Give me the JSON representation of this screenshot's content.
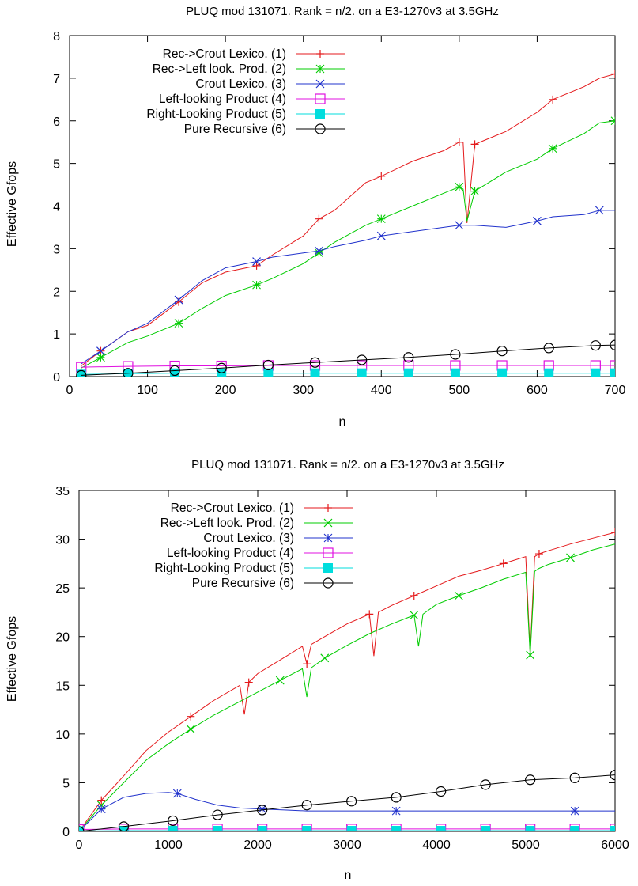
{
  "chart_data": [
    {
      "type": "line",
      "title": "PLUQ mod 131071. Rank = n/2. on a E3-1270v3 at 3.5GHz",
      "xlabel": "n",
      "ylabel": "Effective Gfops",
      "xlim": [
        0,
        700
      ],
      "ylim": [
        0,
        8
      ],
      "xticks": [
        0,
        100,
        200,
        300,
        400,
        500,
        600,
        700
      ],
      "yticks": [
        0,
        1,
        2,
        3,
        4,
        5,
        6,
        7,
        8
      ],
      "grid": false,
      "legend_position": "top-left",
      "series": [
        {
          "name": "Rec->Crout Lexico. (1)",
          "color": "#e41a1c",
          "marker": "plus",
          "x": [
            15,
            40,
            75,
            100,
            140,
            170,
            200,
            240,
            260,
            300,
            320,
            340,
            380,
            400,
            440,
            480,
            500,
            505,
            510,
            520,
            560,
            600,
            620,
            660,
            680,
            700
          ],
          "y": [
            0.25,
            0.6,
            1.05,
            1.2,
            1.75,
            2.2,
            2.45,
            2.6,
            2.85,
            3.3,
            3.7,
            3.9,
            4.55,
            4.7,
            5.05,
            5.3,
            5.5,
            5.5,
            3.6,
            5.45,
            5.75,
            6.2,
            6.5,
            6.8,
            7.0,
            7.1
          ]
        },
        {
          "name": "Rec->Left look. Prod. (2)",
          "color": "#00cc00",
          "marker": "star",
          "x": [
            15,
            40,
            75,
            100,
            140,
            170,
            200,
            240,
            260,
            300,
            320,
            340,
            380,
            400,
            440,
            480,
            500,
            505,
            510,
            520,
            560,
            600,
            620,
            660,
            680,
            700
          ],
          "y": [
            0.2,
            0.45,
            0.8,
            0.95,
            1.25,
            1.6,
            1.9,
            2.15,
            2.3,
            2.65,
            2.9,
            3.15,
            3.55,
            3.7,
            4.0,
            4.3,
            4.45,
            4.4,
            3.65,
            4.35,
            4.8,
            5.1,
            5.35,
            5.7,
            5.95,
            6.0
          ]
        },
        {
          "name": "Crout Lexico. (3)",
          "color": "#2233cc",
          "marker": "cross",
          "x": [
            15,
            40,
            75,
            100,
            140,
            170,
            200,
            240,
            260,
            300,
            320,
            340,
            380,
            400,
            440,
            480,
            500,
            520,
            560,
            600,
            620,
            660,
            680,
            700
          ],
          "y": [
            0.3,
            0.6,
            1.05,
            1.25,
            1.8,
            2.25,
            2.55,
            2.7,
            2.8,
            2.9,
            2.95,
            3.05,
            3.2,
            3.3,
            3.4,
            3.5,
            3.55,
            3.55,
            3.5,
            3.65,
            3.75,
            3.8,
            3.9,
            3.9
          ]
        },
        {
          "name": "Left-looking Product (4)",
          "color": "#e010e0",
          "marker": "square-open",
          "x": [
            15,
            75,
            135,
            195,
            255,
            315,
            375,
            435,
            495,
            555,
            615,
            675,
            700
          ],
          "y": [
            0.22,
            0.24,
            0.25,
            0.25,
            0.26,
            0.26,
            0.26,
            0.26,
            0.26,
            0.26,
            0.26,
            0.26,
            0.26
          ]
        },
        {
          "name": "Right-Looking Product (5)",
          "color": "#00dddd",
          "marker": "square-filled",
          "x": [
            15,
            75,
            135,
            195,
            255,
            315,
            375,
            435,
            495,
            555,
            615,
            675,
            700
          ],
          "y": [
            0.05,
            0.07,
            0.08,
            0.08,
            0.08,
            0.08,
            0.08,
            0.08,
            0.08,
            0.08,
            0.08,
            0.08,
            0.08
          ]
        },
        {
          "name": "Pure Recursive (6)",
          "color": "#000000",
          "marker": "circle-open",
          "x": [
            15,
            75,
            135,
            195,
            255,
            315,
            375,
            435,
            495,
            555,
            615,
            675,
            700
          ],
          "y": [
            0.03,
            0.08,
            0.14,
            0.2,
            0.27,
            0.33,
            0.39,
            0.45,
            0.52,
            0.6,
            0.67,
            0.73,
            0.74
          ]
        }
      ]
    },
    {
      "type": "line",
      "title": "PLUQ mod 131071. Rank = n/2. on a E3-1270v3 at 3.5GHz",
      "xlabel": "n",
      "ylabel": "Effective Gfops",
      "xlim": [
        0,
        6000
      ],
      "ylim": [
        0,
        35
      ],
      "xticks": [
        0,
        1000,
        2000,
        3000,
        4000,
        5000,
        6000
      ],
      "yticks": [
        0,
        5,
        10,
        15,
        20,
        25,
        30,
        35
      ],
      "grid": false,
      "legend_position": "top-left",
      "series": [
        {
          "name": "Rec->Crout Lexico. (1)",
          "color": "#e41a1c",
          "marker": "plus",
          "x": [
            0,
            250,
            500,
            750,
            1000,
            1250,
            1500,
            1800,
            1850,
            1900,
            2000,
            2250,
            2500,
            2550,
            2600,
            2750,
            3000,
            3250,
            3300,
            3350,
            3500,
            3750,
            4000,
            4250,
            4500,
            4750,
            5000,
            5050,
            5100,
            5150,
            5250,
            5500,
            5750,
            6000
          ],
          "y": [
            0,
            3.2,
            5.7,
            8.3,
            10.2,
            11.8,
            13.4,
            15.0,
            12.0,
            15.3,
            16.2,
            17.6,
            19.0,
            17.2,
            19.2,
            20.0,
            21.3,
            22.3,
            18.0,
            22.5,
            23.2,
            24.2,
            25.2,
            26.2,
            26.8,
            27.5,
            28.2,
            18.3,
            28.2,
            28.5,
            28.8,
            29.5,
            30.1,
            30.7
          ]
        },
        {
          "name": "Rec->Left look. Prod. (2)",
          "color": "#00cc00",
          "marker": "cross",
          "x": [
            0,
            250,
            500,
            750,
            1000,
            1250,
            1500,
            1750,
            2000,
            2250,
            2500,
            2550,
            2600,
            2750,
            3000,
            3250,
            3500,
            3750,
            3800,
            3850,
            4000,
            4250,
            4500,
            4750,
            5000,
            5050,
            5100,
            5150,
            5250,
            5500,
            5750,
            6000
          ],
          "y": [
            0,
            2.7,
            5.0,
            7.3,
            9.0,
            10.5,
            11.9,
            13.1,
            14.3,
            15.5,
            16.7,
            13.8,
            16.8,
            17.8,
            19.1,
            20.3,
            21.3,
            22.2,
            19.0,
            22.3,
            23.3,
            24.2,
            25.0,
            25.9,
            26.6,
            18.1,
            26.7,
            27.0,
            27.4,
            28.1,
            28.9,
            29.5
          ]
        },
        {
          "name": "Crout Lexico. (3)",
          "color": "#2233cc",
          "marker": "star",
          "x": [
            0,
            250,
            500,
            750,
            1000,
            1100,
            1300,
            1550,
            1800,
            2050,
            2300,
            2550,
            3050,
            3550,
            4050,
            4550,
            5050,
            5550,
            6000
          ],
          "y": [
            0,
            2.3,
            3.5,
            3.9,
            4.0,
            3.9,
            3.3,
            2.7,
            2.4,
            2.3,
            2.2,
            2.1,
            2.1,
            2.1,
            2.1,
            2.1,
            2.1,
            2.1,
            2.1
          ]
        },
        {
          "name": "Left-looking Product (4)",
          "color": "#e010e0",
          "marker": "square-open",
          "x": [
            0,
            500,
            1050,
            1550,
            2050,
            2550,
            3050,
            3550,
            4050,
            4550,
            5050,
            5550,
            6000
          ],
          "y": [
            0.2,
            0.25,
            0.25,
            0.25,
            0.25,
            0.25,
            0.25,
            0.25,
            0.25,
            0.25,
            0.25,
            0.25,
            0.25
          ]
        },
        {
          "name": "Right-Looking Product (5)",
          "color": "#00dddd",
          "marker": "square-filled",
          "x": [
            0,
            500,
            1050,
            1550,
            2050,
            2550,
            3050,
            3550,
            4050,
            4550,
            5050,
            5550,
            6000
          ],
          "y": [
            0.05,
            0.08,
            0.08,
            0.08,
            0.08,
            0.08,
            0.08,
            0.08,
            0.08,
            0.08,
            0.08,
            0.08,
            0.08
          ]
        },
        {
          "name": "Pure Recursive (6)",
          "color": "#000000",
          "marker": "circle-open",
          "x": [
            0,
            500,
            1050,
            1550,
            2050,
            2550,
            3050,
            3550,
            4050,
            4550,
            5050,
            5550,
            6000
          ],
          "y": [
            0,
            0.5,
            1.1,
            1.7,
            2.2,
            2.7,
            3.1,
            3.5,
            4.1,
            4.8,
            5.3,
            5.5,
            5.8
          ]
        }
      ]
    }
  ]
}
